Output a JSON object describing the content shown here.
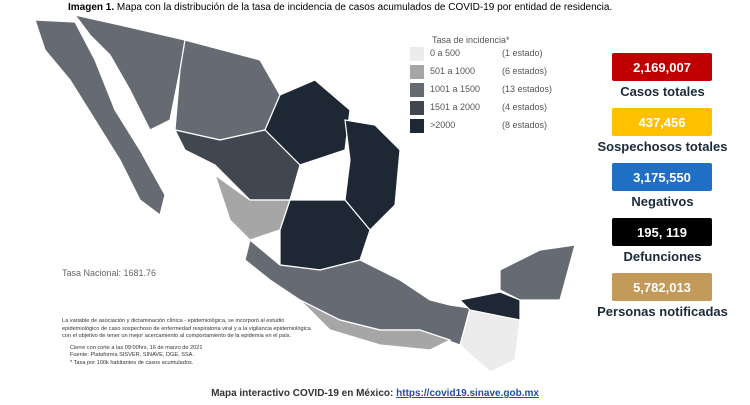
{
  "header": {
    "label": "Imagen 1.",
    "title": "Mapa con la distribución de la tasa de incidencia de casos acumulados de COVID-19 por entidad de residencia."
  },
  "legend": {
    "title": "Tasa de incidencia*",
    "items": [
      {
        "range": "0 a 500",
        "count": "(1 estado)",
        "color": "#ececec"
      },
      {
        "range": "501 a 1000",
        "count": "(6 estados)",
        "color": "#a6a6a6"
      },
      {
        "range": "1001 a 1500",
        "count": "(13 estados)",
        "color": "#666b73"
      },
      {
        "range": "1501 a 2000",
        "count": "(4 estados)",
        "color": "#404750"
      },
      {
        "range": ">2000",
        "count": "(8 estados)",
        "color": "#1e2834"
      }
    ]
  },
  "national_rate": "Tasa Nacional: 1681.76",
  "stats": [
    {
      "value": "2,169,007",
      "label": "Casos totales",
      "color": "#c00000"
    },
    {
      "value": "437,456",
      "label": "Sospechosos totales",
      "color": "#ffc000"
    },
    {
      "value": "3,175,550",
      "label": "Negativos",
      "color": "#1f6fc5"
    },
    {
      "value": "195, 119",
      "label": "Defunciones",
      "color": "#000000"
    },
    {
      "value": "5,782,013",
      "label": "Personas notificadas",
      "color": "#c49a5a"
    }
  ],
  "notes": [
    "La variable de asociación y dictaminación clínica - epidemiológica, se incorporó al estudio",
    "epidemiológico de caso sospechoso de enfermedad respiratoria viral y a la vigilancia epidemiológica",
    "con el objetivo de tener un mejor acercamiento al comportamiento de la epidemia en el país.",
    "Cierre con corte a las 09:00hrs, 16 de marzo de 2021",
    "Fuente: Plataforma SISVER, SINAVE, DGE, SSA.",
    "* Tasa por 100k habitantes de casos acumulados."
  ],
  "footer": {
    "text": "Mapa interactivo COVID-19 en México:",
    "link": "https://covid19.sinave.gob.mx"
  }
}
